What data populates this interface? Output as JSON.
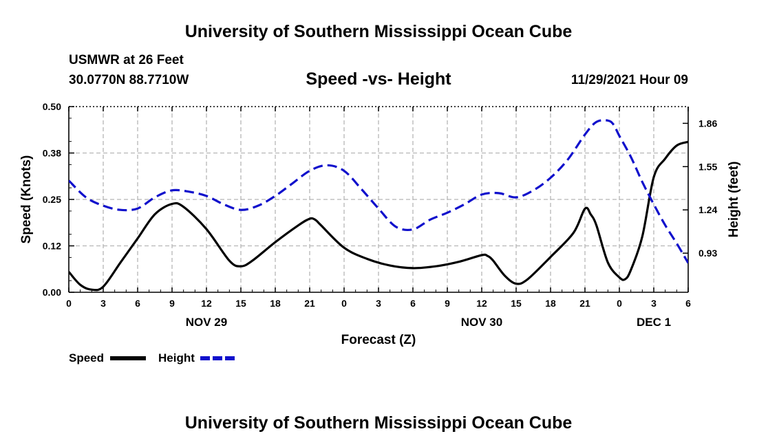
{
  "header": {
    "title": "University of Southern Mississippi Ocean Cube",
    "station": "USMWR at 26 Feet",
    "coords": "30.0770N  88.7710W",
    "subtitle": "Speed -vs- Height",
    "datetime": "11/29/2021 Hour 09"
  },
  "footer": {
    "title": "University of Southern Mississippi Ocean Cube"
  },
  "colors": {
    "speed": "#000000",
    "height": "#1010cc"
  },
  "chart_data": {
    "type": "line",
    "title": "Speed -vs- Height",
    "xlabel": "Forecast (Z)",
    "ylabel": "Speed (Knots)",
    "y2label": "Height (feet)",
    "ylim": [
      0,
      0.5
    ],
    "y2lim": [
      0.65,
      1.98
    ],
    "xlim": [
      0,
      54
    ],
    "grid": true,
    "x_ticks": [
      {
        "x": 0,
        "label": "0"
      },
      {
        "x": 3,
        "label": "3"
      },
      {
        "x": 6,
        "label": "6"
      },
      {
        "x": 9,
        "label": "9"
      },
      {
        "x": 12,
        "label": "12"
      },
      {
        "x": 15,
        "label": "15"
      },
      {
        "x": 18,
        "label": "18"
      },
      {
        "x": 21,
        "label": "21"
      },
      {
        "x": 24,
        "label": "0"
      },
      {
        "x": 27,
        "label": "3"
      },
      {
        "x": 30,
        "label": "6"
      },
      {
        "x": 33,
        "label": "9"
      },
      {
        "x": 36,
        "label": "12"
      },
      {
        "x": 39,
        "label": "15"
      },
      {
        "x": 42,
        "label": "18"
      },
      {
        "x": 45,
        "label": "21"
      },
      {
        "x": 48,
        "label": "0"
      },
      {
        "x": 51,
        "label": "3"
      },
      {
        "x": 54,
        "label": "6"
      }
    ],
    "y_ticks": [
      "0.00",
      "0.12",
      "0.25",
      "0.38",
      "0.50"
    ],
    "y_tick_values": [
      0,
      0.125,
      0.25,
      0.375,
      0.5
    ],
    "y2_ticks": [
      "0.93",
      "1.24",
      "1.55",
      "1.86"
    ],
    "y2_tick_values": [
      0.93,
      1.24,
      1.55,
      1.86
    ],
    "day_labels": [
      {
        "x": 12,
        "label": "NOV 29"
      },
      {
        "x": 36,
        "label": "NOV 30"
      },
      {
        "x": 51,
        "label": "DEC 1"
      }
    ],
    "legend": {
      "position": "bottom-left",
      "speed_label": "Speed",
      "height_label": "Height"
    },
    "series": [
      {
        "name": "Speed",
        "axis": "left",
        "style": "solid",
        "x": [
          0,
          1,
          2,
          3,
          4.5,
          6,
          7.5,
          9,
          10,
          12,
          14,
          15,
          16,
          18,
          20,
          21,
          21.5,
          22,
          24,
          26,
          28,
          30,
          32,
          34,
          36,
          36.5,
          37,
          38,
          39,
          40,
          42,
          44,
          45,
          45.5,
          46,
          47,
          48,
          48.5,
          49,
          50,
          51,
          52,
          53,
          54
        ],
        "y": [
          0.055,
          0.02,
          0.007,
          0.015,
          0.08,
          0.145,
          0.21,
          0.238,
          0.23,
          0.17,
          0.085,
          0.07,
          0.085,
          0.135,
          0.18,
          0.198,
          0.195,
          0.18,
          0.12,
          0.09,
          0.072,
          0.065,
          0.07,
          0.082,
          0.1,
          0.098,
          0.085,
          0.045,
          0.023,
          0.035,
          0.095,
          0.16,
          0.225,
          0.21,
          0.18,
          0.08,
          0.04,
          0.035,
          0.06,
          0.15,
          0.31,
          0.36,
          0.395,
          0.405
        ]
      },
      {
        "name": "Height",
        "axis": "right",
        "style": "dashed",
        "x": [
          0,
          1.5,
          3,
          4.5,
          6,
          7.5,
          9,
          10.5,
          12,
          13.5,
          15,
          16.5,
          18,
          19.5,
          21,
          22.5,
          24,
          25.5,
          27,
          28.5,
          30,
          31.5,
          33,
          34.5,
          36,
          37.5,
          39,
          40.5,
          42,
          43.5,
          45,
          46,
          47,
          47.5,
          48,
          49,
          50,
          51,
          52,
          53,
          54
        ],
        "y": [
          1.45,
          1.33,
          1.27,
          1.24,
          1.25,
          1.33,
          1.38,
          1.37,
          1.34,
          1.28,
          1.24,
          1.27,
          1.34,
          1.43,
          1.52,
          1.56,
          1.52,
          1.39,
          1.25,
          1.12,
          1.1,
          1.17,
          1.22,
          1.28,
          1.35,
          1.36,
          1.33,
          1.38,
          1.47,
          1.6,
          1.78,
          1.87,
          1.88,
          1.85,
          1.77,
          1.62,
          1.44,
          1.28,
          1.13,
          1.0,
          0.86
        ]
      }
    ]
  }
}
